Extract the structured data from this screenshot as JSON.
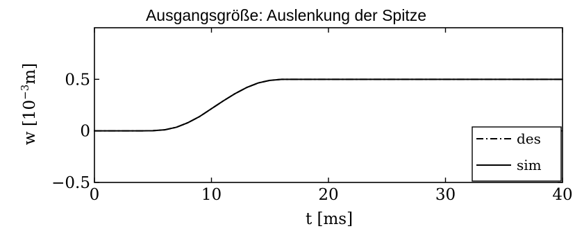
{
  "chart_data": {
    "type": "line",
    "title": "Ausgangsgröße: Auslenkung der Spitze",
    "xlabel": "t [ms]",
    "ylabel_base": "w [10",
    "ylabel_exp": "−3",
    "ylabel_unit": "m]",
    "xlim": [
      0,
      40
    ],
    "ylim": [
      -0.5,
      1.0
    ],
    "xticks": [
      {
        "value": 0,
        "label": "0"
      },
      {
        "value": 10,
        "label": "10"
      },
      {
        "value": 20,
        "label": "20"
      },
      {
        "value": 30,
        "label": "30"
      },
      {
        "value": 40,
        "label": "40"
      }
    ],
    "yticks": [
      {
        "value": -0.5,
        "label": "−0.5"
      },
      {
        "value": 0,
        "label": "0"
      },
      {
        "value": 0.5,
        "label": "0.5"
      }
    ],
    "grid": false,
    "legend_position": "bottom-right",
    "series": [
      {
        "name": "des",
        "style": "dashdot",
        "color": "#000000",
        "x": [
          0,
          4,
          5,
          6,
          7,
          8,
          9,
          10,
          11,
          12,
          13,
          14,
          15,
          16,
          18,
          20,
          25,
          30,
          35,
          40
        ],
        "y": [
          0,
          0,
          0.002,
          0.01,
          0.035,
          0.08,
          0.14,
          0.215,
          0.29,
          0.36,
          0.42,
          0.465,
          0.49,
          0.5,
          0.5,
          0.5,
          0.5,
          0.5,
          0.5,
          0.5
        ]
      },
      {
        "name": "sim",
        "style": "solid",
        "color": "#000000",
        "x": [
          0,
          4,
          5,
          6,
          7,
          8,
          9,
          10,
          11,
          12,
          13,
          14,
          15,
          16,
          18,
          20,
          25,
          30,
          35,
          40
        ],
        "y": [
          0,
          0,
          0.002,
          0.01,
          0.035,
          0.08,
          0.14,
          0.215,
          0.29,
          0.36,
          0.42,
          0.465,
          0.49,
          0.5,
          0.5,
          0.5,
          0.5,
          0.5,
          0.5,
          0.5
        ]
      }
    ]
  }
}
